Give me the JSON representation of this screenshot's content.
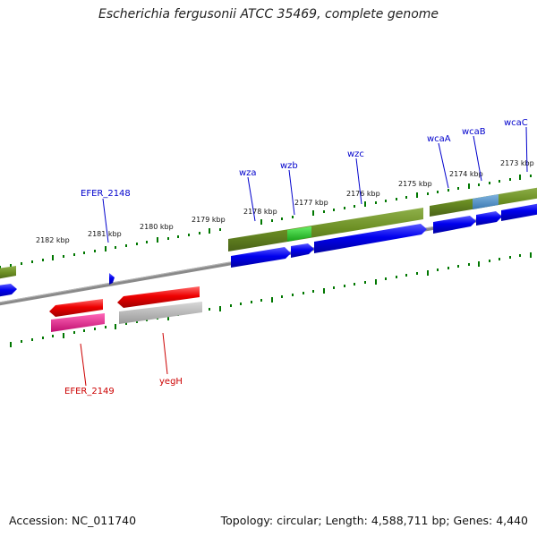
{
  "header": {
    "title": "Escherichia fergusonii ATCC 35469, complete genome"
  },
  "footer": {
    "accession": "Accession: NC_011740",
    "summary": "Topology: circular; Length: 4,588,711 bp; Genes: 4,440"
  },
  "ruler": {
    "tick_labels": [
      "2173 kbp",
      "2174 kbp",
      "2175 kbp",
      "2176 kbp",
      "2177 kbp",
      "2178 kbp",
      "2179 kbp",
      "2180 kbp",
      "2181 kbp",
      "2182 kbp"
    ]
  },
  "genes": {
    "top": [
      "wcaC",
      "wcaB",
      "wcaA",
      "wzc",
      "wzb",
      "wza",
      "EFER_2148"
    ],
    "bottom": [
      "yegH",
      "EFER_2149"
    ]
  },
  "colors": {
    "cds_forward": "#0000ee",
    "cds_reverse": "#ee0000",
    "gene_track": "#6b8e23",
    "highlight_green": "#22cc22",
    "highlight_blue": "#4a90c8",
    "reverse_gene_pink": "#e0198a",
    "reverse_gene_gray": "#b0b0b0",
    "backbone": "#7a7a7a",
    "ruler_ticks": "#007700",
    "top_label": "#0000cc",
    "bottom_label": "#cc0000"
  }
}
